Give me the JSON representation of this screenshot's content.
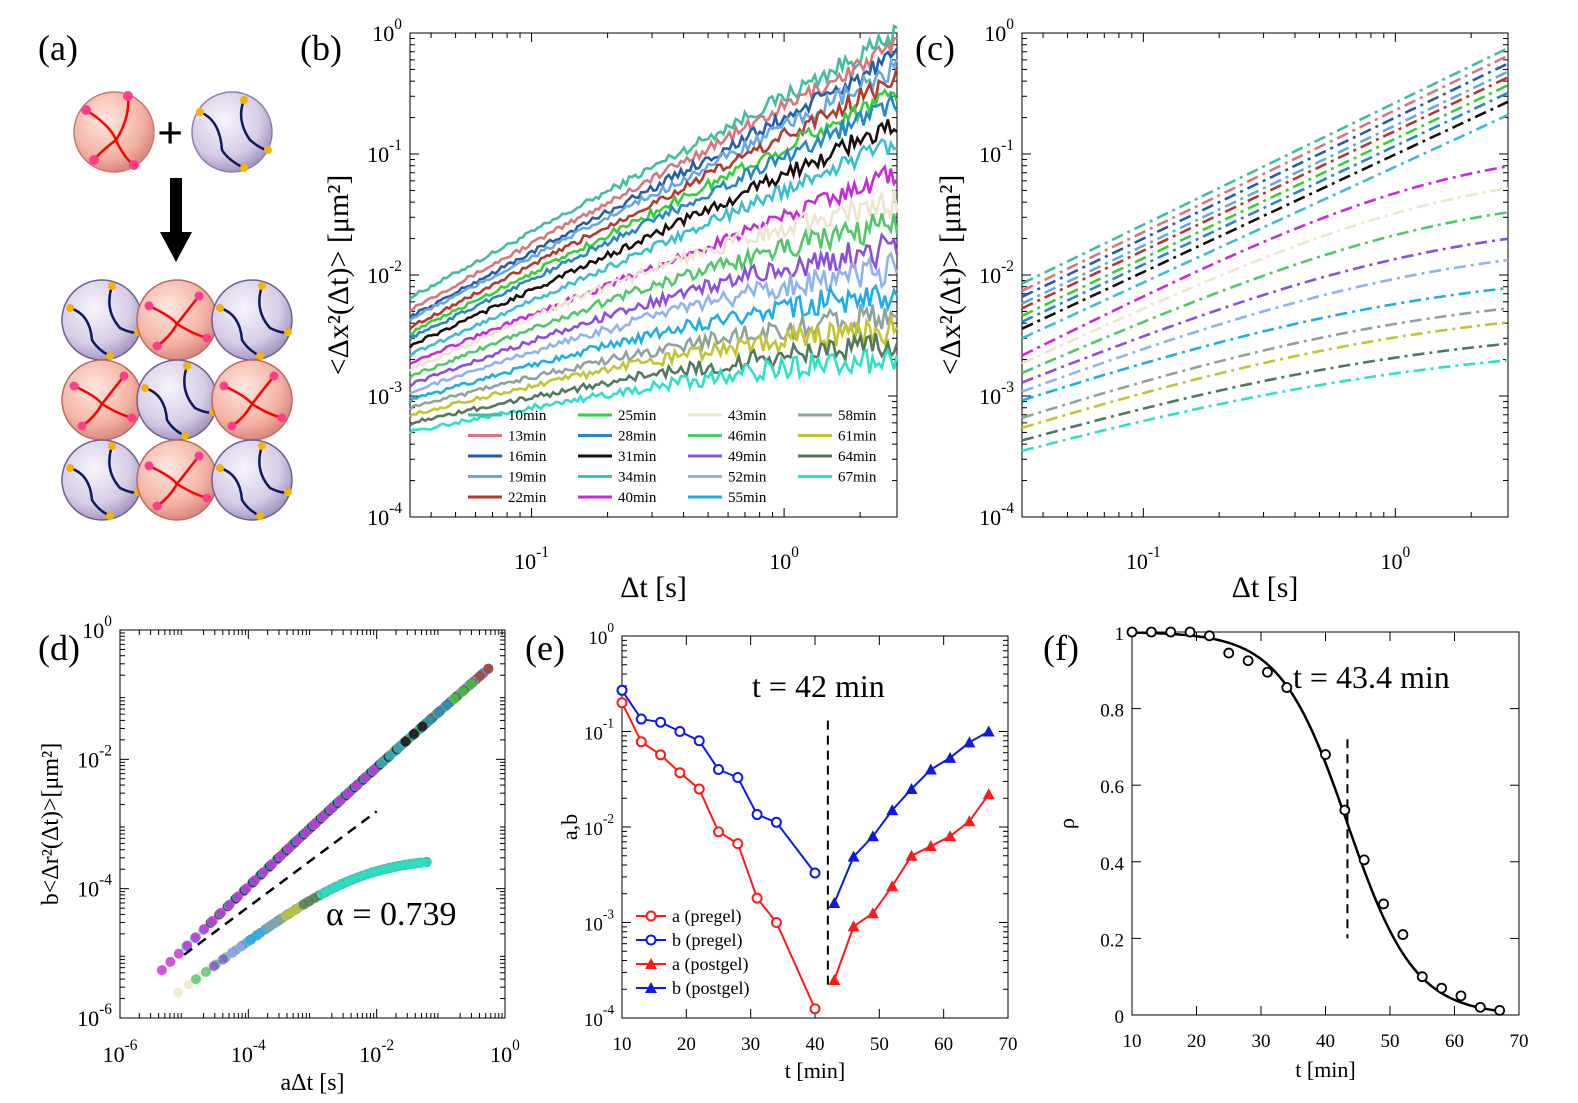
{
  "labels": {
    "a": "(a)",
    "b": "(b)",
    "c": "(c)",
    "d": "(d)",
    "e": "(e)",
    "f": "(f)"
  },
  "schematic": {
    "plus": "+",
    "colors": {
      "red_particle": "#f6b9a8",
      "blue_particle": "#d9d0ea",
      "red_chain": "#ff0000",
      "blue_chain": "#0d1a5c",
      "pink_end": "#ff3d8b",
      "yellow_end": "#f4b400"
    }
  },
  "chart_data": [
    {
      "id": "b",
      "type": "line",
      "xscale": "log",
      "yscale": "log",
      "xlim": [
        0.033,
        2.8
      ],
      "ylim": [
        0.0001,
        1
      ],
      "xlabel": "Δt [s]",
      "ylabel": "<Δx²(Δt)> [μm²]",
      "xticks": [
        {
          "v": 0.1,
          "m": "10",
          "e": "-1"
        },
        {
          "v": 1,
          "m": "10",
          "e": "0"
        }
      ],
      "yticks": [
        {
          "v": 0.0001,
          "m": "10",
          "e": "-4"
        },
        {
          "v": 0.001,
          "m": "10",
          "e": "-3"
        },
        {
          "v": 0.01,
          "m": "10",
          "e": "-2"
        },
        {
          "v": 0.1,
          "m": "10",
          "e": "-1"
        },
        {
          "v": 1,
          "m": "10",
          "e": "0"
        }
      ],
      "legend_position": "bottom",
      "series": [
        {
          "name": "10min",
          "color": "#3fbf9f",
          "start": 0.0065,
          "end": 0.95,
          "plateau": null
        },
        {
          "name": "13min",
          "color": "#d9757c",
          "start": 0.0052,
          "end": 0.78,
          "plateau": null
        },
        {
          "name": "16min",
          "color": "#1f5fae",
          "start": 0.0045,
          "end": 0.62,
          "plateau": null
        },
        {
          "name": "19min",
          "color": "#6ea5e0",
          "start": 0.0043,
          "end": 0.5,
          "plateau": null
        },
        {
          "name": "22min",
          "color": "#b33a2b",
          "start": 0.0037,
          "end": 0.42,
          "plateau": null
        },
        {
          "name": "25min",
          "color": "#2fd23a",
          "start": 0.0033,
          "end": 0.33,
          "plateau": null
        },
        {
          "name": "28min",
          "color": "#2a86c7",
          "start": 0.003,
          "end": 0.27,
          "plateau": null
        },
        {
          "name": "31min",
          "color": "#1a0d0d",
          "start": 0.0026,
          "end": 0.18,
          "plateau": null
        },
        {
          "name": "34min",
          "color": "#3bbfcf",
          "start": 0.0022,
          "end": 0.13,
          "plateau": null
        },
        {
          "name": "40min",
          "color": "#c72bd9",
          "start": 0.0019,
          "end": 0.07,
          "plateau": null
        },
        {
          "name": "43min",
          "color": "#ece6cc",
          "start": 0.0017,
          "end": 0.05,
          "plateau": 0.06
        },
        {
          "name": "46min",
          "color": "#4fc86a",
          "start": 0.0015,
          "end": 0.032,
          "plateau": 0.04
        },
        {
          "name": "49min",
          "color": "#8a4ee0",
          "start": 0.0013,
          "end": 0.022,
          "plateau": 0.025
        },
        {
          "name": "52min",
          "color": "#8fb3ef",
          "start": 0.00115,
          "end": 0.015,
          "plateau": 0.017
        },
        {
          "name": "55min",
          "color": "#1eaee6",
          "start": 0.001,
          "end": 0.0095,
          "plateau": 0.011
        },
        {
          "name": "58min",
          "color": "#8fa39d",
          "start": 0.0009,
          "end": 0.0062,
          "plateau": 0.0072
        },
        {
          "name": "61min",
          "color": "#c2c531",
          "start": 0.0008,
          "end": 0.005,
          "plateau": 0.0056
        },
        {
          "name": "64min",
          "color": "#4f7a5e",
          "start": 0.0007,
          "end": 0.0037,
          "plateau": 0.004
        },
        {
          "name": "67min",
          "color": "#2de0c7",
          "start": 0.0006,
          "end": 0.0029,
          "plateau": 0.0031
        }
      ]
    },
    {
      "id": "c",
      "type": "line",
      "style": "dashdot",
      "xscale": "log",
      "yscale": "log",
      "xlim": [
        0.033,
        2.8
      ],
      "ylim": [
        0.0001,
        1
      ],
      "xlabel": "Δt [s]",
      "ylabel": "<Δx²(Δt)> [μm²]",
      "xticks": [
        {
          "v": 0.1,
          "m": "10",
          "e": "-1"
        },
        {
          "v": 1,
          "m": "10",
          "e": "0"
        }
      ],
      "yticks": [
        {
          "v": 0.0001,
          "m": "10",
          "e": "-4"
        },
        {
          "v": 0.001,
          "m": "10",
          "e": "-3"
        },
        {
          "v": 0.01,
          "m": "10",
          "e": "-2"
        },
        {
          "v": 0.1,
          "m": "10",
          "e": "-1"
        },
        {
          "v": 1,
          "m": "10",
          "e": "0"
        }
      ],
      "series": [
        {
          "name": "10min",
          "color": "#3fbf9f",
          "start": 0.0085,
          "end": 0.75,
          "plateau": null
        },
        {
          "name": "13min",
          "color": "#d9757c",
          "start": 0.0074,
          "end": 0.65,
          "plateau": null
        },
        {
          "name": "16min",
          "color": "#1f5fae",
          "start": 0.0066,
          "end": 0.56,
          "plateau": null
        },
        {
          "name": "19min",
          "color": "#6ea5e0",
          "start": 0.0058,
          "end": 0.48,
          "plateau": null
        },
        {
          "name": "22min",
          "color": "#b33a2b",
          "start": 0.0053,
          "end": 0.43,
          "plateau": null
        },
        {
          "name": "25min",
          "color": "#2fd23a",
          "start": 0.0046,
          "end": 0.37,
          "plateau": null
        },
        {
          "name": "28min",
          "color": "#2a86c7",
          "start": 0.0041,
          "end": 0.32,
          "plateau": null
        },
        {
          "name": "31min",
          "color": "#1a0d0d",
          "start": 0.0036,
          "end": 0.27,
          "plateau": null
        },
        {
          "name": "34min",
          "color": "#3bbfcf",
          "start": 0.003,
          "end": 0.21,
          "plateau": null
        },
        {
          "name": "40min",
          "color": "#c72bd9",
          "start": 0.0022,
          "end": 0.105,
          "plateau": 0.12
        },
        {
          "name": "43min",
          "color": "#ece6cc",
          "start": 0.0019,
          "end": 0.068,
          "plateau": 0.08
        },
        {
          "name": "46min",
          "color": "#4fc86a",
          "start": 0.0016,
          "end": 0.044,
          "plateau": 0.05
        },
        {
          "name": "49min",
          "color": "#8a4ee0",
          "start": 0.00135,
          "end": 0.027,
          "plateau": 0.03
        },
        {
          "name": "52min",
          "color": "#8fb3ef",
          "start": 0.00115,
          "end": 0.018,
          "plateau": 0.02
        },
        {
          "name": "55min",
          "color": "#1eaee6",
          "start": 0.001,
          "end": 0.011,
          "plateau": 0.0115
        },
        {
          "name": "58min",
          "color": "#8fa39d",
          "start": 0.00072,
          "end": 0.0075,
          "plateau": 0.0078
        },
        {
          "name": "61min",
          "color": "#c2c531",
          "start": 0.0006,
          "end": 0.0057,
          "plateau": 0.006
        },
        {
          "name": "64min",
          "color": "#4f7a5e",
          "start": 0.00048,
          "end": 0.0038,
          "plateau": 0.004
        },
        {
          "name": "67min",
          "color": "#2de0c7",
          "start": 0.0004,
          "end": 0.0028,
          "plateau": 0.0029
        }
      ]
    },
    {
      "id": "d",
      "type": "scatter",
      "xscale": "log",
      "yscale": "log",
      "xlim": [
        1e-06,
        1
      ],
      "ylim": [
        1e-06,
        1
      ],
      "xlabel": "aΔt [s]",
      "ylabel": "b<Δr²(Δt)>[μm²]",
      "xticks": [
        {
          "v": 1e-06,
          "m": "10",
          "e": "-6"
        },
        {
          "v": 0.0001,
          "m": "10",
          "e": "-4"
        },
        {
          "v": 0.01,
          "m": "10",
          "e": "-2"
        },
        {
          "v": 1,
          "m": "10",
          "e": "0"
        }
      ],
      "yticks": [
        {
          "v": 1e-06,
          "m": "10",
          "e": "-6"
        },
        {
          "v": 0.0001,
          "m": "10",
          "e": "-4"
        },
        {
          "v": 0.01,
          "m": "10",
          "e": "-2"
        },
        {
          "v": 1,
          "m": "10",
          "e": "0"
        }
      ],
      "annotation": "α = 0.739",
      "pregel_branch": {
        "x_range": [
          4.5e-06,
          0.55
        ],
        "y_range": [
          5.5e-06,
          0.25
        ]
      },
      "postgel_branch": {
        "x_range": [
          8e-06,
          0.06
        ],
        "y_range": [
          2.5e-06,
          0.0003
        ]
      },
      "slope_line": {
        "slope": 0.739,
        "x_range": [
          1e-05,
          0.01
        ],
        "y_at_start": 9.5e-06
      }
    },
    {
      "id": "e",
      "type": "line",
      "xscale": "linear",
      "yscale": "log",
      "xlim": [
        10,
        70
      ],
      "ylim": [
        0.0001,
        1
      ],
      "xlabel": "t [min]",
      "ylabel": "a,b",
      "xticks": [
        {
          "v": 10,
          "t": "10"
        },
        {
          "v": 20,
          "t": "20"
        },
        {
          "v": 30,
          "t": "30"
        },
        {
          "v": 40,
          "t": "40"
        },
        {
          "v": 50,
          "t": "50"
        },
        {
          "v": 60,
          "t": "60"
        },
        {
          "v": 70,
          "t": "70"
        }
      ],
      "yticks": [
        {
          "v": 0.0001,
          "m": "10",
          "e": "-4"
        },
        {
          "v": 0.001,
          "m": "10",
          "e": "-3"
        },
        {
          "v": 0.01,
          "m": "10",
          "e": "-2"
        },
        {
          "v": 0.1,
          "m": "10",
          "e": "-1"
        },
        {
          "v": 1,
          "m": "10",
          "e": "0"
        }
      ],
      "annotation": "t = 42 min",
      "vline": 42,
      "series": [
        {
          "name": "a (pregel)",
          "color": "#ff1a1a",
          "marker": "circle",
          "x": [
            10,
            13,
            16,
            19,
            22,
            25,
            28,
            31,
            34,
            40
          ],
          "y": [
            0.2,
            0.078,
            0.057,
            0.037,
            0.025,
            0.0089,
            0.0067,
            0.0018,
            0.001,
            0.000125
          ]
        },
        {
          "name": "b (pregel)",
          "color": "#0d1ae6",
          "marker": "circle",
          "x": [
            10,
            13,
            16,
            19,
            22,
            25,
            28,
            31,
            34,
            40
          ],
          "y": [
            0.27,
            0.135,
            0.125,
            0.1,
            0.08,
            0.04,
            0.033,
            0.0135,
            0.0112,
            0.0033
          ]
        },
        {
          "name": "a (postgel)",
          "color": "#ff1a1a",
          "marker": "triangle",
          "x": [
            43,
            46,
            49,
            52,
            55,
            58,
            61,
            64,
            67
          ],
          "y": [
            0.00025,
            0.00091,
            0.00125,
            0.0024,
            0.005,
            0.0063,
            0.008,
            0.0115,
            0.022
          ]
        },
        {
          "name": "b (postgel)",
          "color": "#0d1ae6",
          "marker": "triangle",
          "x": [
            43,
            46,
            49,
            52,
            55,
            58,
            61,
            64,
            67
          ],
          "y": [
            0.0016,
            0.0049,
            0.008,
            0.015,
            0.025,
            0.04,
            0.053,
            0.077,
            0.1
          ]
        }
      ]
    },
    {
      "id": "f",
      "type": "scatter",
      "xscale": "linear",
      "yscale": "linear",
      "xlim": [
        10,
        70
      ],
      "ylim": [
        0,
        1
      ],
      "xlabel": "t [min]",
      "ylabel": "ρ",
      "xticks": [
        {
          "v": 10,
          "t": "10"
        },
        {
          "v": 20,
          "t": "20"
        },
        {
          "v": 30,
          "t": "30"
        },
        {
          "v": 40,
          "t": "40"
        },
        {
          "v": 50,
          "t": "50"
        },
        {
          "v": 60,
          "t": "60"
        },
        {
          "v": 70,
          "t": "70"
        }
      ],
      "yticks": [
        {
          "v": 0,
          "t": "0"
        },
        {
          "v": 0.2,
          "t": "0.2"
        },
        {
          "v": 0.4,
          "t": "0.4"
        },
        {
          "v": 0.6,
          "t": "0.6"
        },
        {
          "v": 0.8,
          "t": "0.8"
        },
        {
          "v": 1,
          "t": "1"
        }
      ],
      "annotation": "t = 43.4 min",
      "vline": 43.4,
      "vline_range": [
        0.2,
        0.72
      ],
      "points": {
        "x": [
          10,
          13,
          16,
          19,
          22,
          25,
          28,
          31,
          34,
          40,
          43,
          46,
          49,
          52,
          55,
          58,
          61,
          64,
          67
        ],
        "y": [
          1,
          1,
          1,
          1,
          0.99,
          0.945,
          0.925,
          0.895,
          0.855,
          0.68,
          0.535,
          0.405,
          0.29,
          0.21,
          0.1,
          0.07,
          0.05,
          0.02,
          0.012
        ]
      },
      "fit": {
        "type": "sigmoid",
        "center": 43.4,
        "width": 5.2
      }
    }
  ]
}
